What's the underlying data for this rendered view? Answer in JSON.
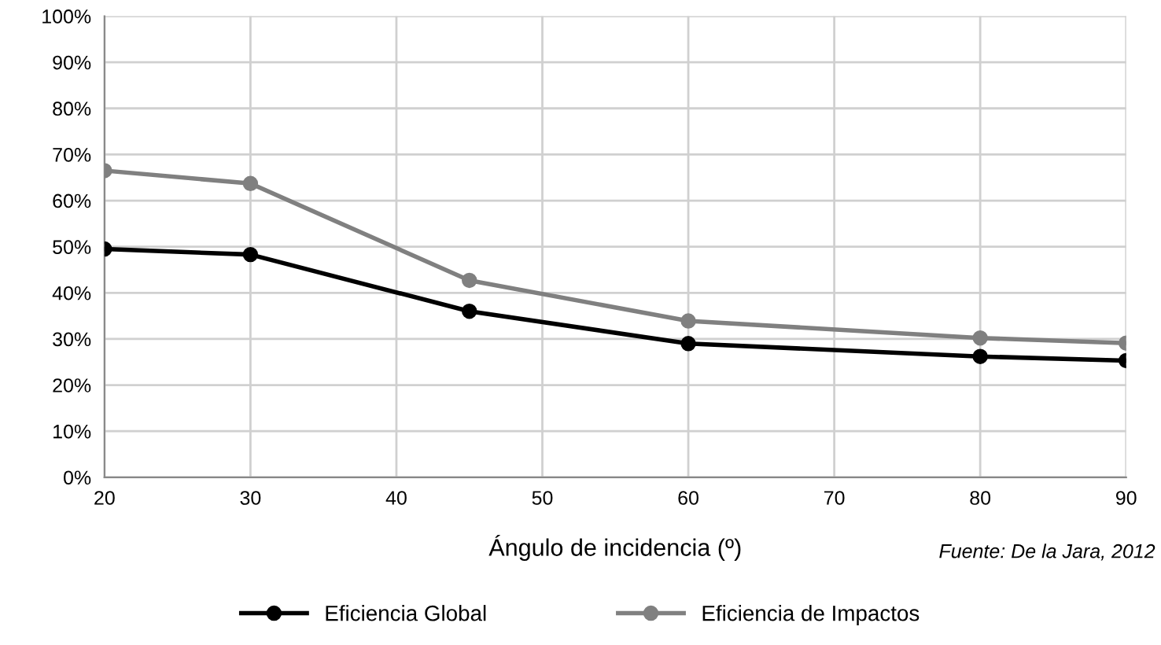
{
  "chart_data": {
    "type": "line",
    "xlabel": "Ángulo de incidencia (º)",
    "annotations": [
      "Fuente: De la Jara, 2012"
    ],
    "x": [
      20,
      30,
      45,
      60,
      80,
      90
    ],
    "series": [
      {
        "name": "Eficiencia Global",
        "color": "#000000",
        "values": [
          49.5,
          48.3,
          36,
          29,
          26.2,
          25.3
        ]
      },
      {
        "name": "Eficiencia de Impactos",
        "color": "#808080",
        "values": [
          66.5,
          63.7,
          42.7,
          33.9,
          30.2,
          29.1
        ]
      }
    ],
    "xlim": [
      20,
      90
    ],
    "xticks": [
      20,
      30,
      40,
      50,
      60,
      70,
      80,
      90
    ],
    "ylim": [
      0,
      100
    ],
    "yticks": [
      {
        "value": 0,
        "label": "0%"
      },
      {
        "value": 10,
        "label": "10%"
      },
      {
        "value": 20,
        "label": "20%"
      },
      {
        "value": 30,
        "label": "30%"
      },
      {
        "value": 40,
        "label": "40%"
      },
      {
        "value": 50,
        "label": "50%"
      },
      {
        "value": 60,
        "label": "60%"
      },
      {
        "value": 70,
        "label": "70%"
      },
      {
        "value": 80,
        "label": "80%"
      },
      {
        "value": 90,
        "label": "90%"
      },
      {
        "value": 100,
        "label": "100%"
      }
    ],
    "grid": true,
    "legend": "bottom",
    "marker": "circle",
    "line_style": "solid"
  }
}
